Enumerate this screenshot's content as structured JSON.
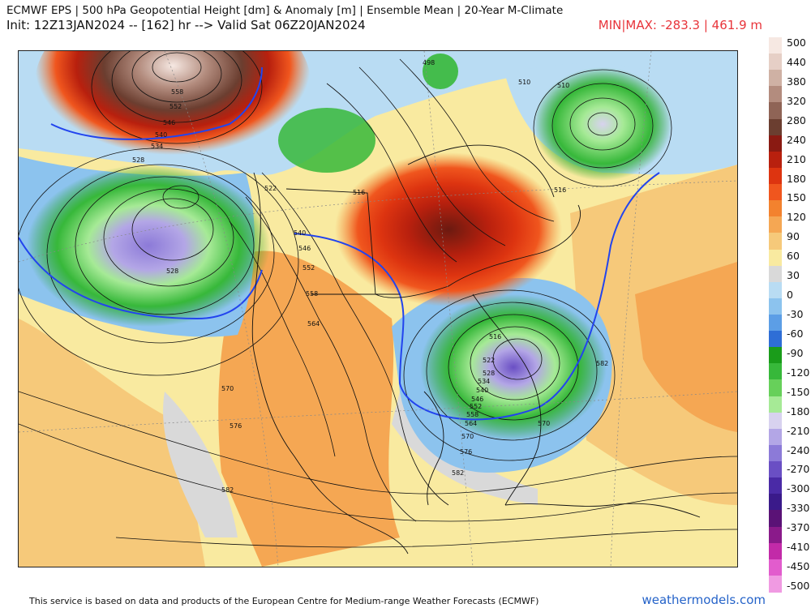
{
  "header": {
    "title": "ECMWF EPS | 500 hPa Geopotential Height [dm] & Anomaly [m] | Ensemble Mean | 20-Year M-Climate",
    "init": "Init: 12Z13JAN2024 -- [162] hr --> Valid Sat 06Z20JAN2024",
    "minmax": "MIN|MAX: -283.3 | 461.9 m"
  },
  "colorbar": {
    "labels": [
      "500",
      "440",
      "380",
      "320",
      "280",
      "240",
      "210",
      "180",
      "150",
      "120",
      "90",
      "60",
      "30",
      "0",
      "-30",
      "-60",
      "-90",
      "-120",
      "-150",
      "-180",
      "-210",
      "-240",
      "-270",
      "-300",
      "-330",
      "-370",
      "-410",
      "-450",
      "-500"
    ],
    "colors": [
      "#f6e8e2",
      "#e6cfc6",
      "#cfb1a4",
      "#b38c7e",
      "#8f6456",
      "#6b3e30",
      "#8a1a12",
      "#b8200e",
      "#dd3410",
      "#f0561e",
      "#f3822e",
      "#f5a753",
      "#f6c97a",
      "#f9eaa0",
      "#d9d9d9",
      "#b9dcf3",
      "#8cc3ee",
      "#5c9ee6",
      "#2e6ed6",
      "#1a9c1a",
      "#37b83a",
      "#67d05a",
      "#a6ea96",
      "#d8d2ef",
      "#b3a6e6",
      "#8c7ad8",
      "#6a4fc4",
      "#4a2aa6",
      "#3a1a8a",
      "#5a1276",
      "#8a1a8a",
      "#c22aa8",
      "#e25ccd",
      "#f09ae2"
    ]
  },
  "map": {
    "contour_labels": [
      "558",
      "552",
      "546",
      "540",
      "534",
      "528",
      "522",
      "516",
      "510",
      "498",
      "540",
      "546",
      "552",
      "558",
      "564",
      "570",
      "576",
      "582",
      "528",
      "516",
      "510",
      "516",
      "522",
      "528",
      "534",
      "540",
      "546",
      "552",
      "558",
      "564",
      "570",
      "576",
      "582",
      "582",
      "570"
    ]
  },
  "footer": {
    "credit": "This service is based on data and products of the European Centre for Medium-range Weather Forecasts (ECMWF)",
    "site": "weathermodels.com"
  }
}
